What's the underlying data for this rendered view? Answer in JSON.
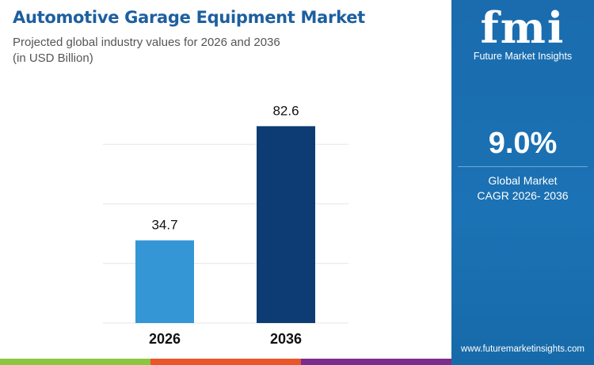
{
  "header": {
    "title": "Automotive Garage Equipment Market",
    "subtitle": "Projected global industry values for 2026 and 2036",
    "unit": "(in USD Billion)"
  },
  "panel": {
    "brand": "fmi",
    "brand_name": "Future Market Insights",
    "cagr": "9.0%",
    "cagr_label_1": "Global Market",
    "cagr_label_2": "CAGR 2026- 2036",
    "url": "www.futuremarketinsights.com",
    "color": "#1a6fb0"
  },
  "footer_colors": [
    "#8cc63f",
    "#e8562a",
    "#7b2d8b"
  ],
  "chart_data": {
    "type": "bar",
    "categories": [
      "2026",
      "2036"
    ],
    "values": [
      34.7,
      82.6
    ],
    "labels": [
      "34.7",
      "82.6"
    ],
    "colors": [
      "#3596d6",
      "#0d3b73"
    ],
    "ylim": [
      0,
      100
    ],
    "gridlines": [
      0,
      25,
      50,
      75
    ],
    "grid": true,
    "title": "",
    "xlabel": "",
    "ylabel": ""
  }
}
